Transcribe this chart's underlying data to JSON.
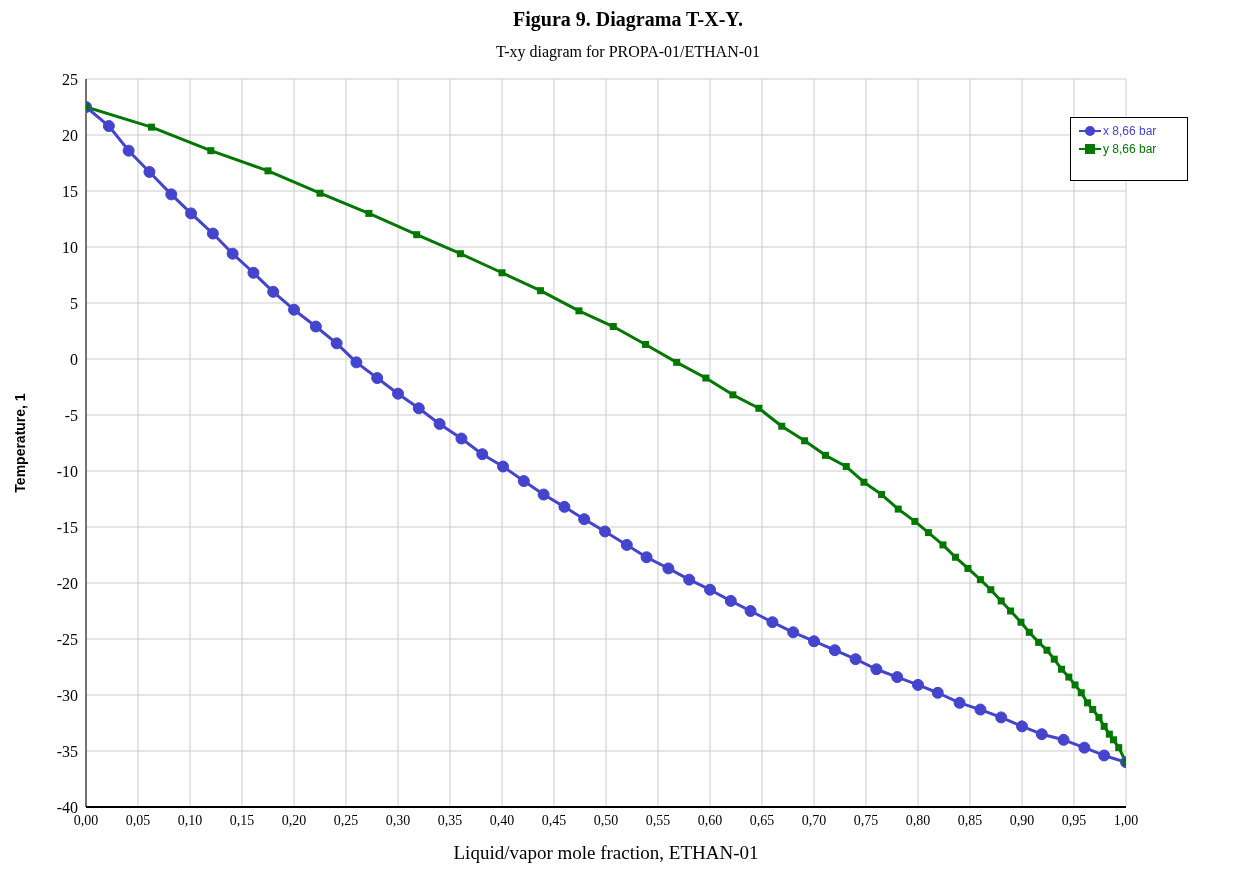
{
  "chart_data": {
    "type": "line",
    "title": "Figura 9. Diagrama T-X-Y.",
    "subtitle": "T-xy diagram for PROPA-01/ETHAN-01",
    "xlabel": "Liquid/vapor mole fraction, ETHAN-01",
    "ylabel": "Temperature, 1",
    "series": [
      {
        "name": "x 8,66 bar",
        "color": "#4444cc",
        "marker": "circle",
        "x": [
          0,
          0.022,
          0.041,
          0.061,
          0.082,
          0.101,
          0.122,
          0.141,
          0.161,
          0.18,
          0.2,
          0.221,
          0.241,
          0.26,
          0.28,
          0.3,
          0.32,
          0.34,
          0.361,
          0.381,
          0.401,
          0.421,
          0.44,
          0.46,
          0.479,
          0.499,
          0.52,
          0.539,
          0.56,
          0.58,
          0.6,
          0.62,
          0.639,
          0.66,
          0.68,
          0.7,
          0.72,
          0.74,
          0.76,
          0.78,
          0.8,
          0.819,
          0.84,
          0.86,
          0.88,
          0.9,
          0.919,
          0.94,
          0.96,
          0.979,
          1.0
        ],
        "values": [
          22.5,
          20.8,
          18.6,
          16.7,
          14.7,
          13.0,
          11.2,
          9.4,
          7.7,
          6.0,
          4.4,
          2.9,
          1.4,
          -0.3,
          -1.7,
          -3.1,
          -4.4,
          -5.8,
          -7.1,
          -8.5,
          -9.6,
          -10.9,
          -12.1,
          -13.2,
          -14.3,
          -15.4,
          -16.6,
          -17.7,
          -18.7,
          -19.7,
          -20.6,
          -21.6,
          -22.5,
          -23.5,
          -24.4,
          -25.2,
          -26.0,
          -26.8,
          -27.7,
          -28.4,
          -29.1,
          -29.8,
          -30.7,
          -31.3,
          -32.0,
          -32.8,
          -33.5,
          -34.0,
          -34.7,
          -35.4,
          -36.0
        ]
      },
      {
        "name": "y 8,66 bar",
        "color": "#007700",
        "marker": "square",
        "x": [
          0,
          0.063,
          0.12,
          0.175,
          0.225,
          0.272,
          0.318,
          0.36,
          0.4,
          0.437,
          0.474,
          0.507,
          0.538,
          0.568,
          0.596,
          0.622,
          0.647,
          0.669,
          0.691,
          0.711,
          0.731,
          0.748,
          0.765,
          0.781,
          0.797,
          0.81,
          0.824,
          0.836,
          0.848,
          0.86,
          0.87,
          0.88,
          0.889,
          0.899,
          0.907,
          0.916,
          0.924,
          0.931,
          0.938,
          0.945,
          0.951,
          0.957,
          0.963,
          0.968,
          0.974,
          0.979,
          0.984,
          0.988,
          0.993,
          1.0
        ],
        "values": [
          22.5,
          20.7,
          18.6,
          16.8,
          14.8,
          13.0,
          11.1,
          9.4,
          7.7,
          6.1,
          4.3,
          2.9,
          1.3,
          -0.3,
          -1.7,
          -3.2,
          -4.4,
          -6.0,
          -7.3,
          -8.6,
          -9.6,
          -11.0,
          -12.1,
          -13.4,
          -14.5,
          -15.5,
          -16.6,
          -17.7,
          -18.7,
          -19.7,
          -20.6,
          -21.6,
          -22.5,
          -23.5,
          -24.4,
          -25.3,
          -26.0,
          -26.8,
          -27.7,
          -28.4,
          -29.1,
          -29.8,
          -30.7,
          -31.3,
          -32.0,
          -32.8,
          -33.5,
          -34.0,
          -34.7,
          -36.0
        ]
      }
    ],
    "xlim": [
      0,
      1
    ],
    "xticks": [
      {
        "value": 0,
        "label": "0,00"
      },
      {
        "value": 0.05,
        "label": "0,05"
      },
      {
        "value": 0.1,
        "label": "0,10"
      },
      {
        "value": 0.15,
        "label": "0,15"
      },
      {
        "value": 0.2,
        "label": "0,20"
      },
      {
        "value": 0.25,
        "label": "0,25"
      },
      {
        "value": 0.3,
        "label": "0,30"
      },
      {
        "value": 0.35,
        "label": "0,35"
      },
      {
        "value": 0.4,
        "label": "0,40"
      },
      {
        "value": 0.45,
        "label": "0,45"
      },
      {
        "value": 0.5,
        "label": "0,50"
      },
      {
        "value": 0.55,
        "label": "0,55"
      },
      {
        "value": 0.6,
        "label": "0,60"
      },
      {
        "value": 0.65,
        "label": "0,65"
      },
      {
        "value": 0.7,
        "label": "0,70"
      },
      {
        "value": 0.75,
        "label": "0,75"
      },
      {
        "value": 0.8,
        "label": "0,80"
      },
      {
        "value": 0.85,
        "label": "0,85"
      },
      {
        "value": 0.9,
        "label": "0,90"
      },
      {
        "value": 0.95,
        "label": "0,95"
      },
      {
        "value": 1.0,
        "label": "1,00"
      }
    ],
    "ylim": [
      -40,
      25
    ],
    "yticks": [
      -40,
      -35,
      -30,
      -25,
      -20,
      -15,
      -10,
      -5,
      0,
      5,
      10,
      15,
      20,
      25
    ],
    "grid": true,
    "legend": "top right",
    "line_style": "solid"
  }
}
